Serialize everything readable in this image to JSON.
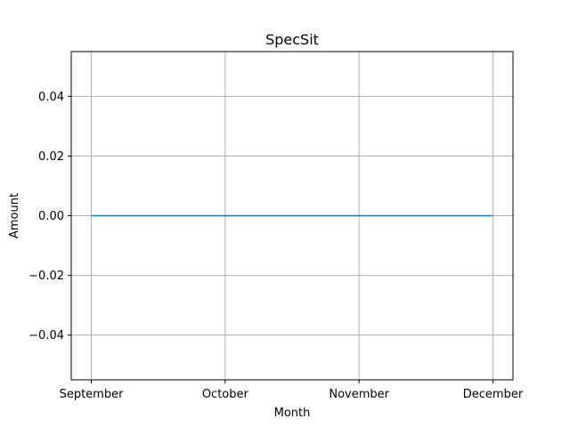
{
  "chart_data": {
    "type": "line",
    "title": "SpecSit",
    "xlabel": "Month",
    "ylabel": "Amount",
    "categories": [
      "September",
      "October",
      "November",
      "December"
    ],
    "series": [
      {
        "values": [
          0,
          0,
          0,
          0
        ],
        "color": "#1f77b4"
      }
    ],
    "ylim": [
      -0.055,
      0.055
    ],
    "yticks": [
      -0.04,
      -0.02,
      0.0,
      0.02,
      0.04
    ],
    "ytick_labels": [
      "−0.04",
      "−0.02",
      "0.00",
      "0.02",
      "0.04"
    ],
    "grid": true,
    "legend": "none"
  },
  "colors": {
    "grid": "#b0b0b0",
    "axes": "#000000"
  }
}
